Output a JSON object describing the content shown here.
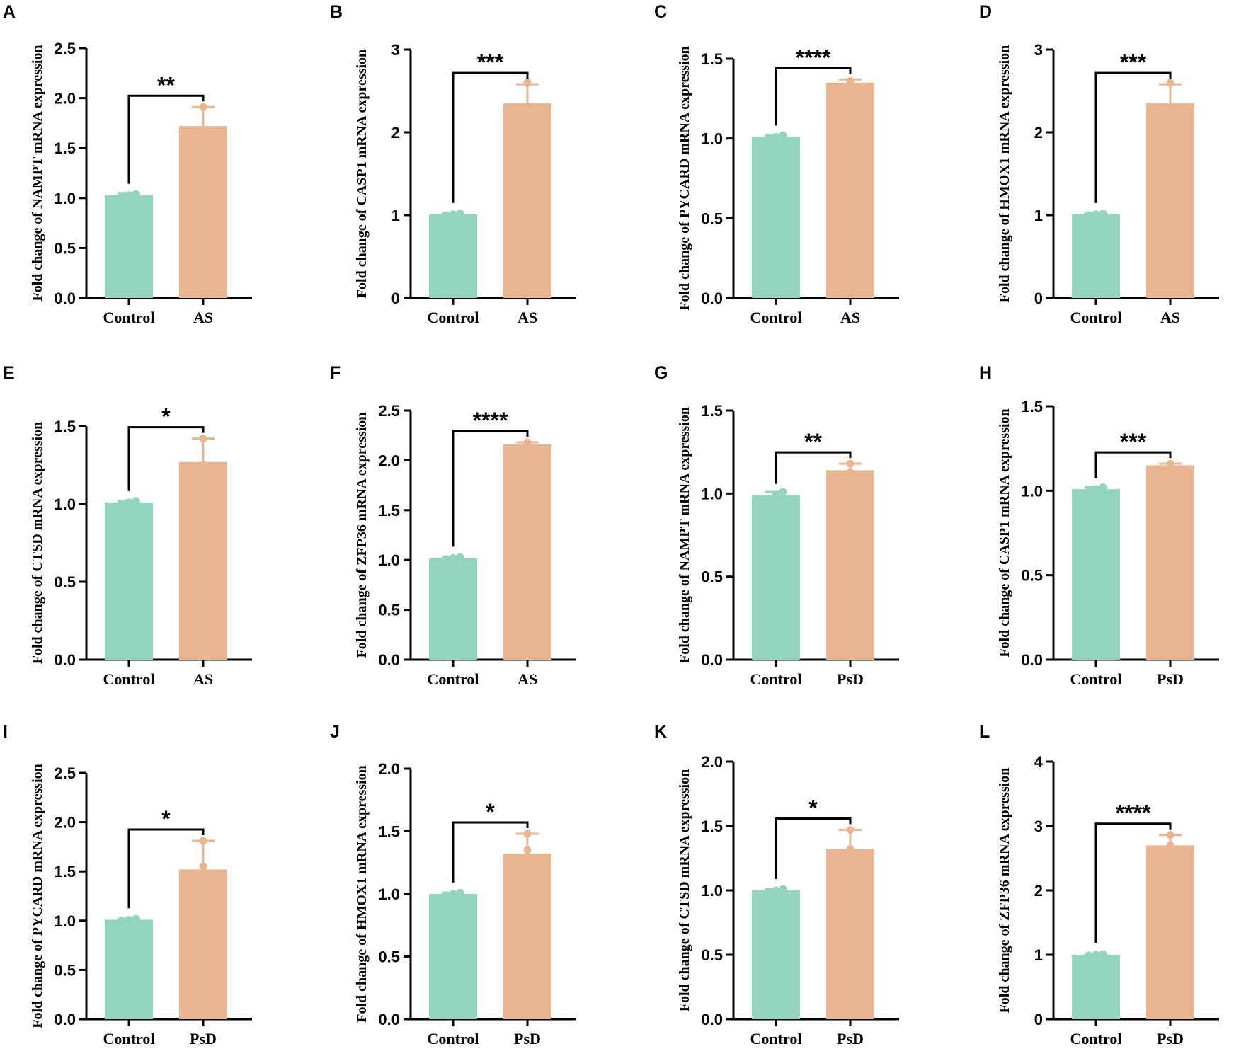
{
  "colors": {
    "control": "#93d4c1",
    "treatment": "#e8b591",
    "axis": "#000000"
  },
  "chart_data": [
    {
      "letter": "A",
      "type": "bar",
      "ylabel": "Fold change of NAMPT mRNA expression",
      "categories": [
        "Control",
        "AS"
      ],
      "values": [
        1.03,
        1.72
      ],
      "errors": [
        0.02,
        0.19
      ],
      "points": [
        [
          1.02,
          1.03,
          1.04
        ],
        [
          1.52,
          1.62,
          1.91
        ]
      ],
      "ylim": [
        0,
        2.5
      ],
      "yticks": [
        "0.0",
        "0.5",
        "1.0",
        "1.5",
        "2.0",
        "2.5"
      ],
      "significance": "**"
    },
    {
      "letter": "B",
      "type": "bar",
      "ylabel": "Fold change of CASP1 mRNA expression",
      "categories": [
        "Control",
        "AS"
      ],
      "values": [
        1.01,
        2.35
      ],
      "errors": [
        0.01,
        0.23
      ],
      "points": [
        [
          1.0,
          1.01,
          1.02
        ],
        [
          2.1,
          2.3,
          2.6
        ]
      ],
      "ylim": [
        0,
        3
      ],
      "yticks": [
        "0",
        "1",
        "2",
        "3"
      ],
      "significance": "***"
    },
    {
      "letter": "C",
      "type": "bar",
      "ylabel": "Fold change of PYCARD mRNA expression",
      "categories": [
        "Control",
        "AS"
      ],
      "values": [
        1.01,
        1.35
      ],
      "errors": [
        0.01,
        0.02
      ],
      "points": [
        [
          1.0,
          1.01,
          1.02
        ],
        [
          1.34,
          1.35,
          1.36
        ]
      ],
      "ylim": [
        0,
        1.5
      ],
      "yticks": [
        "0.0",
        "0.5",
        "1.0",
        "1.5"
      ],
      "significance": "****"
    },
    {
      "letter": "D",
      "type": "bar",
      "ylabel": "Fold change of HMOX1 mRNA expression",
      "categories": [
        "Control",
        "AS"
      ],
      "values": [
        1.01,
        2.35
      ],
      "errors": [
        0.01,
        0.23
      ],
      "points": [
        [
          1.0,
          1.01,
          1.02
        ],
        [
          2.1,
          2.3,
          2.6
        ]
      ],
      "ylim": [
        0,
        3
      ],
      "yticks": [
        "0",
        "1",
        "2",
        "3"
      ],
      "significance": "***"
    },
    {
      "letter": "E",
      "type": "bar",
      "ylabel": "Fold change of CTSD mRNA expression",
      "categories": [
        "Control",
        "AS"
      ],
      "values": [
        1.01,
        1.27
      ],
      "errors": [
        0.01,
        0.15
      ],
      "points": [
        [
          1.0,
          1.01,
          1.02
        ],
        [
          1.1,
          1.25,
          1.42
        ]
      ],
      "ylim": [
        0,
        1.5
      ],
      "yticks": [
        "0.0",
        "0.5",
        "1.0",
        "1.5"
      ],
      "significance": "*"
    },
    {
      "letter": "F",
      "type": "bar",
      "ylabel": "Fold change of ZFP36 mRNA expression",
      "categories": [
        "Control",
        "AS"
      ],
      "values": [
        1.02,
        2.16
      ],
      "errors": [
        0.01,
        0.02
      ],
      "points": [
        [
          1.01,
          1.02,
          1.03
        ],
        [
          2.15,
          2.16,
          2.18
        ]
      ],
      "ylim": [
        0,
        2.5
      ],
      "yticks": [
        "0.0",
        "0.5",
        "1.0",
        "1.5",
        "2.0",
        "2.5"
      ],
      "significance": "****"
    },
    {
      "letter": "G",
      "type": "bar",
      "ylabel": "Fold change of NAMPT mRNA expression",
      "categories": [
        "Control",
        "PsD"
      ],
      "values": [
        0.99,
        1.14
      ],
      "errors": [
        0.02,
        0.04
      ],
      "points": [
        [
          0.97,
          0.99,
          1.01
        ],
        [
          1.1,
          1.13,
          1.18
        ]
      ],
      "ylim": [
        0,
        1.5
      ],
      "yticks": [
        "0.0",
        "0.5",
        "1.0",
        "1.5"
      ],
      "significance": "**"
    },
    {
      "letter": "H",
      "type": "bar",
      "ylabel": "Fold change of CASP1 mRNA expression",
      "categories": [
        "Control",
        "PsD"
      ],
      "values": [
        1.01,
        1.15
      ],
      "errors": [
        0.01,
        0.01
      ],
      "points": [
        [
          1.0,
          1.01,
          1.02
        ],
        [
          1.14,
          1.15,
          1.16
        ]
      ],
      "ylim": [
        0,
        1.5
      ],
      "yticks": [
        "0.0",
        "0.5",
        "1.0",
        "1.5"
      ],
      "significance": "***"
    },
    {
      "letter": "I",
      "type": "bar",
      "ylabel": "Fold change of PYCARD mRNA expression",
      "categories": [
        "Control",
        "PsD"
      ],
      "values": [
        1.01,
        1.52
      ],
      "errors": [
        0.01,
        0.29
      ],
      "points": [
        [
          1.0,
          1.01,
          1.02
        ],
        [
          1.25,
          1.55,
          1.81
        ]
      ],
      "ylim": [
        0,
        2.5
      ],
      "yticks": [
        "0.0",
        "0.5",
        "1.0",
        "1.5",
        "2.0",
        "2.5"
      ],
      "significance": "*"
    },
    {
      "letter": "J",
      "type": "bar",
      "ylabel": "Fold change of HMOX1 mRNA expression",
      "categories": [
        "Control",
        "PsD"
      ],
      "values": [
        1.0,
        1.32
      ],
      "errors": [
        0.01,
        0.16
      ],
      "points": [
        [
          0.99,
          1.0,
          1.01
        ],
        [
          1.15,
          1.35,
          1.48
        ]
      ],
      "ylim": [
        0,
        2.0
      ],
      "yticks": [
        "0.0",
        "0.5",
        "1.0",
        "1.5",
        "2.0"
      ],
      "significance": "*"
    },
    {
      "letter": "K",
      "type": "bar",
      "ylabel": "Fold change of CTSD mRNA expression",
      "categories": [
        "Control",
        "PsD"
      ],
      "values": [
        1.0,
        1.32
      ],
      "errors": [
        0.01,
        0.15
      ],
      "points": [
        [
          0.99,
          1.0,
          1.01
        ],
        [
          1.17,
          1.32,
          1.47
        ]
      ],
      "ylim": [
        0,
        2.0
      ],
      "yticks": [
        "0.0",
        "0.5",
        "1.0",
        "1.5",
        "2.0"
      ],
      "significance": "*"
    },
    {
      "letter": "L",
      "type": "bar",
      "ylabel": "Fold change of ZFP36 mRNA expression",
      "categories": [
        "Control",
        "PsD"
      ],
      "values": [
        1.0,
        2.7
      ],
      "errors": [
        0.01,
        0.16
      ],
      "points": [
        [
          0.99,
          1.0,
          1.01
        ],
        [
          2.55,
          2.7,
          2.86
        ]
      ],
      "ylim": [
        0,
        4
      ],
      "yticks": [
        "0",
        "1",
        "2",
        "3",
        "4"
      ],
      "significance": "****"
    }
  ]
}
